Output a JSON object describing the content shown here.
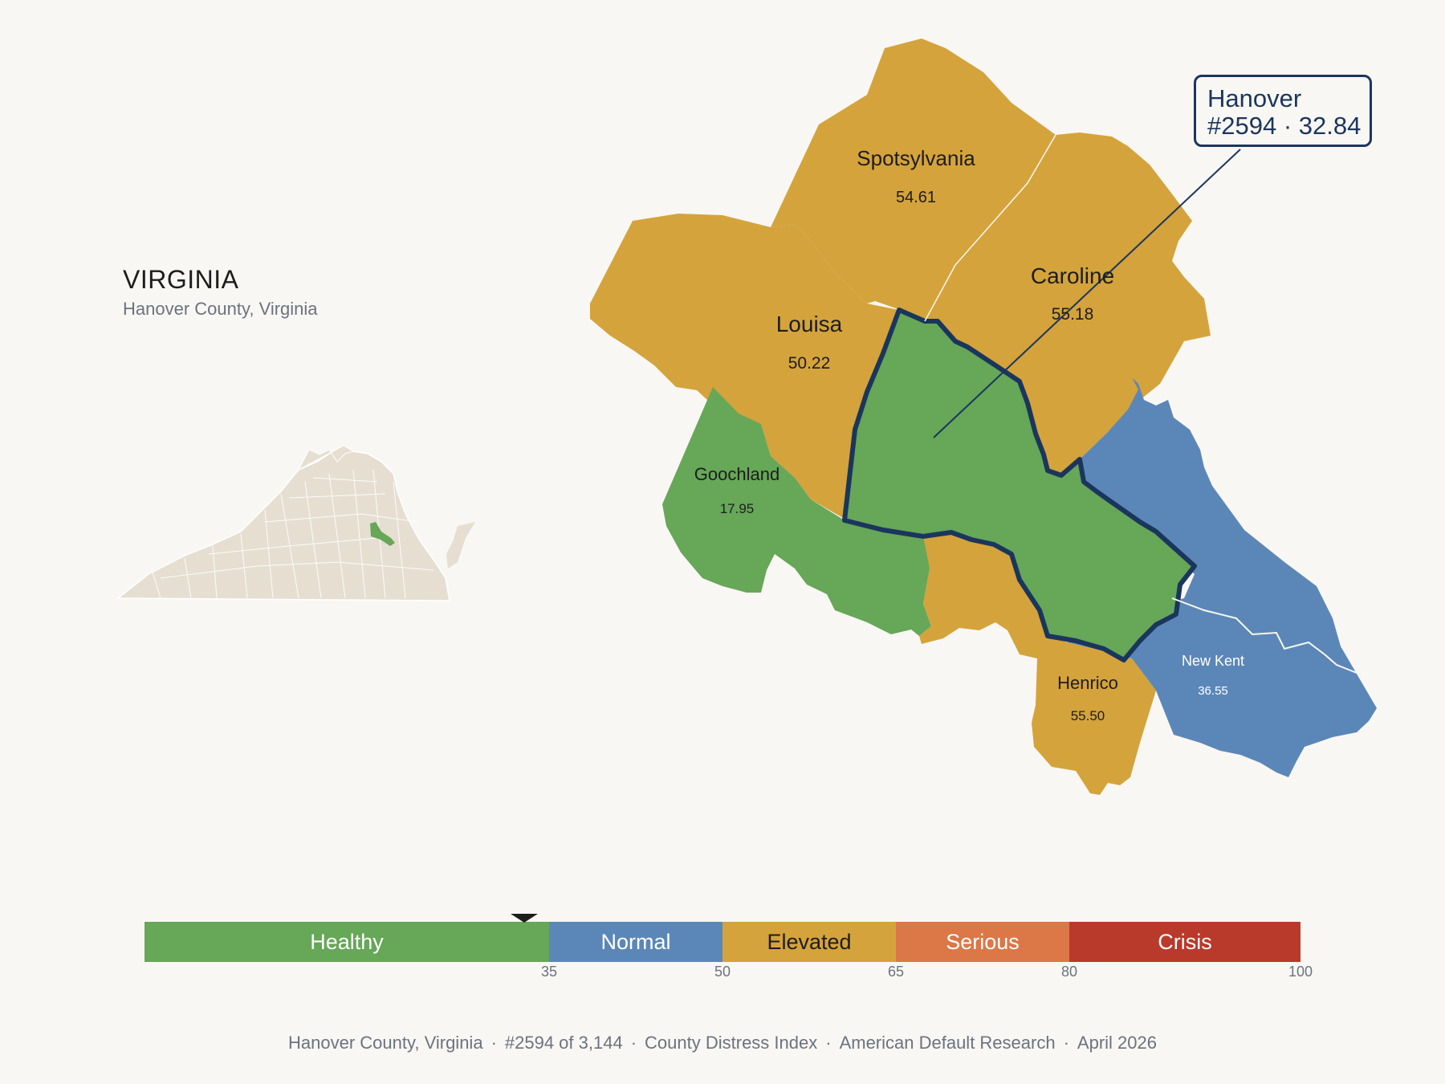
{
  "state": {
    "name": "VIRGINIA",
    "subtitle": "Hanover County, Virginia"
  },
  "callout": {
    "name": "Hanover",
    "detail": "#2594 · 32.84"
  },
  "counties": [
    {
      "id": "spotsylvania",
      "name": "Spotsylvania",
      "value": "54.61",
      "category": "Elevated"
    },
    {
      "id": "caroline",
      "name": "Caroline",
      "value": "55.18",
      "category": "Elevated"
    },
    {
      "id": "louisa",
      "name": "Louisa",
      "value": "50.22",
      "category": "Elevated"
    },
    {
      "id": "goochland",
      "name": "Goochland",
      "value": "17.95",
      "category": "Healthy"
    },
    {
      "id": "hanover",
      "name": "Hanover",
      "value": "32.84",
      "category": "Healthy",
      "highlighted": true
    },
    {
      "id": "henrico",
      "name": "Henrico",
      "value": "55.50",
      "category": "Elevated"
    },
    {
      "id": "new-kent",
      "name": "New Kent",
      "value": "36.55",
      "category": "Normal"
    }
  ],
  "colors": {
    "Healthy": "#66a758",
    "Normal": "#5b87b8",
    "Elevated": "#d4a33b",
    "Serious": "#dc7748",
    "Crisis": "#b93a2b",
    "highlight_border": "#1b365d",
    "state_fill": "#e6ded1"
  },
  "scale": {
    "min": 0,
    "max": 100,
    "marker_value": 32.84,
    "segments": [
      {
        "label": "Healthy",
        "from": 0,
        "to": 35,
        "text_color": "#ffffff"
      },
      {
        "label": "Normal",
        "from": 35,
        "to": 50,
        "text_color": "#ffffff"
      },
      {
        "label": "Elevated",
        "from": 50,
        "to": 65,
        "text_color": "#1d1d1d"
      },
      {
        "label": "Serious",
        "from": 65,
        "to": 80,
        "text_color": "#ffffff"
      },
      {
        "label": "Crisis",
        "from": 80,
        "to": 100,
        "text_color": "#ffffff"
      }
    ],
    "ticks": [
      "35",
      "50",
      "65",
      "80",
      "100"
    ]
  },
  "footer": {
    "county": "Hanover County, Virginia",
    "rank": "#2594 of 3,144",
    "index": "County Distress Index",
    "source": "American Default Research",
    "date": "April 2026"
  }
}
